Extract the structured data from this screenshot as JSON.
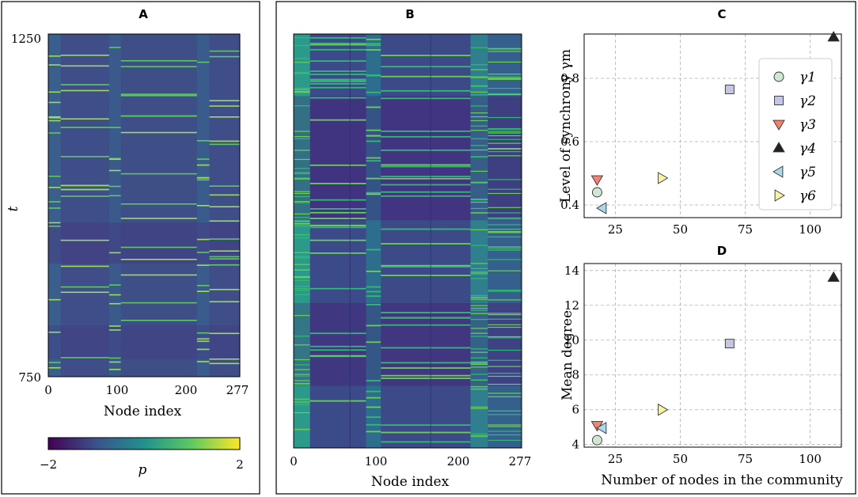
{
  "chart_data": [
    {
      "panel": "A",
      "type": "heatmap",
      "title": "A",
      "xlabel": "Node index",
      "ylabel": "t",
      "x_ticks": [
        "0",
        "100",
        "200",
        "277"
      ],
      "y_ticks": [
        "750",
        "1250"
      ],
      "xlim": [
        0,
        277
      ],
      "ylim": [
        750,
        1250
      ],
      "colorbar": {
        "label": "p",
        "ticks": [
          "−2",
          "2"
        ],
        "range": [
          -2,
          2
        ]
      }
    },
    {
      "panel": "B",
      "type": "heatmap",
      "title": "B",
      "xlabel": "Node index",
      "x_ticks": [
        "0",
        "100",
        "200",
        "277"
      ],
      "xlim": [
        0,
        277
      ]
    },
    {
      "panel": "C",
      "type": "scatter",
      "title": "C",
      "xlabel": "",
      "ylabel": "Level of synchrony γm",
      "x_ticks": [
        "25",
        "50",
        "75",
        "100"
      ],
      "y_ticks": [
        "0.4",
        "0.6",
        "0.8"
      ],
      "xlim": [
        13,
        112
      ],
      "ylim": [
        0.36,
        0.94
      ],
      "legend_position": "top-right",
      "series": [
        {
          "name": "γ1",
          "sub": "1",
          "marker": "circle",
          "color": "#cfe8d6",
          "x": 18,
          "y": 0.44
        },
        {
          "name": "γ2",
          "sub": "2",
          "marker": "square",
          "color": "#c5c5e6",
          "x": 69,
          "y": 0.765
        },
        {
          "name": "γ3",
          "sub": "3",
          "marker": "tri-down",
          "color": "#f4826f",
          "x": 18,
          "y": 0.48
        },
        {
          "name": "γ4",
          "sub": "4",
          "marker": "tri-up",
          "color": "#222222",
          "x": 109,
          "y": 0.93
        },
        {
          "name": "γ5",
          "sub": "5",
          "marker": "tri-left",
          "color": "#a9d8ea",
          "x": 20,
          "y": 0.39
        },
        {
          "name": "γ6",
          "sub": "6",
          "marker": "tri-right",
          "color": "#f6f2a8",
          "x": 43,
          "y": 0.485
        }
      ]
    },
    {
      "panel": "D",
      "type": "scatter",
      "title": "D",
      "xlabel": "Number of nodes in the community",
      "ylabel": "Mean degree",
      "x_ticks": [
        "25",
        "50",
        "75",
        "100"
      ],
      "y_ticks": [
        "4",
        "6",
        "8",
        "10",
        "12",
        "14"
      ],
      "xlim": [
        13,
        112
      ],
      "ylim": [
        3.85,
        14.4
      ],
      "series": [
        {
          "name": "γ1",
          "marker": "circle",
          "color": "#cfe8d6",
          "x": 18,
          "y": 4.25
        },
        {
          "name": "γ2",
          "marker": "square",
          "color": "#c5c5e6",
          "x": 69,
          "y": 9.8
        },
        {
          "name": "γ3",
          "marker": "tri-down",
          "color": "#f4826f",
          "x": 18,
          "y": 5.1
        },
        {
          "name": "γ4",
          "marker": "tri-up",
          "color": "#222222",
          "x": 109,
          "y": 13.6
        },
        {
          "name": "γ5",
          "marker": "tri-left",
          "color": "#a9d8ea",
          "x": 20,
          "y": 4.95
        },
        {
          "name": "γ6",
          "marker": "tri-right",
          "color": "#f6f2a8",
          "x": 43,
          "y": 6.0
        }
      ]
    }
  ]
}
